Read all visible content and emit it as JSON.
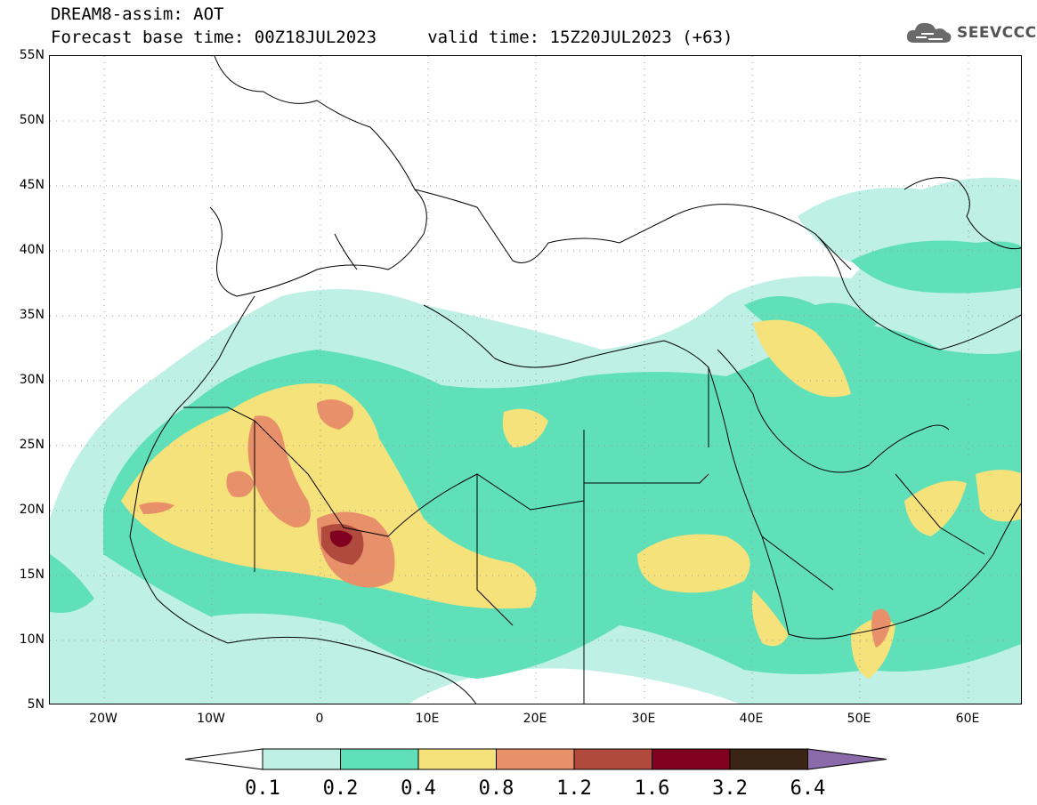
{
  "title": {
    "line1": "DREAM8-assim: AOT",
    "line2": "Forecast base time: 00Z18JUL2023     valid time: 15Z20JUL2023 (+63)"
  },
  "logo": {
    "text": "SEEVCCC",
    "icon": "cloud-icon"
  },
  "map": {
    "lon_range": [
      -25,
      65
    ],
    "lat_range": [
      5,
      55
    ],
    "lat_ticks": [
      "55N",
      "50N",
      "45N",
      "40N",
      "35N",
      "30N",
      "25N",
      "20N",
      "15N",
      "10N",
      "5N"
    ],
    "lon_ticks": [
      "20W",
      "10W",
      "0",
      "10E",
      "20E",
      "30E",
      "40E",
      "50E",
      "60E"
    ],
    "grid": "dotted"
  },
  "colorbar": {
    "labels": [
      "0.1",
      "0.2",
      "0.4",
      "0.8",
      "1.2",
      "1.6",
      "3.2",
      "6.4"
    ],
    "colors": [
      "#ffffff",
      "#bff0e6",
      "#5fe0b8",
      "#f6e27a",
      "#e8906a",
      "#b04a3c",
      "#800020",
      "#3a2414",
      "#8a6aa8"
    ]
  },
  "colors": {
    "aot_0_1": "#bff0e6",
    "aot_0_2": "#5fe0b8",
    "aot_0_4": "#f6e27a",
    "aot_0_8": "#e8906a",
    "aot_1_2": "#b04a3c",
    "aot_1_6": "#800020"
  }
}
